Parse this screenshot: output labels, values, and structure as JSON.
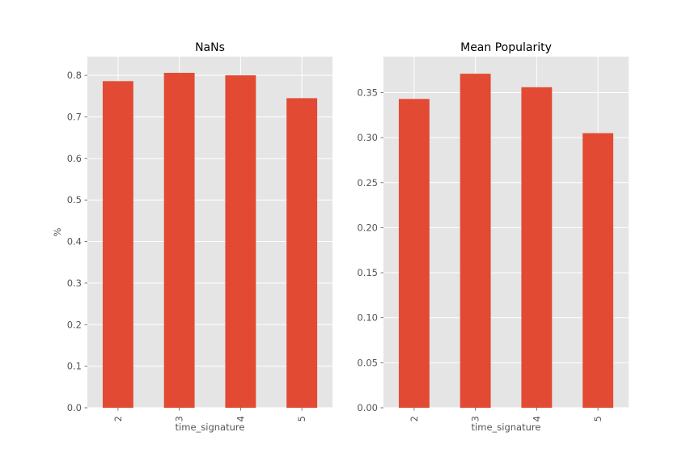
{
  "chart_data": [
    {
      "type": "bar",
      "title": "NaNs",
      "xlabel": "time_signature",
      "ylabel": "%",
      "categories": [
        "2",
        "3",
        "4",
        "5"
      ],
      "values": [
        0.786,
        0.806,
        0.8,
        0.745
      ],
      "ylim": [
        0,
        0.845
      ],
      "yticks": [
        "0.0",
        "0.1",
        "0.2",
        "0.3",
        "0.4",
        "0.5",
        "0.6",
        "0.7",
        "0.8"
      ],
      "grid": true,
      "bar_color": "#E24A33",
      "background": "#E5E5E5"
    },
    {
      "type": "bar",
      "title": "Mean Popularity",
      "xlabel": "time_signature",
      "ylabel": "",
      "categories": [
        "2",
        "3",
        "4",
        "5"
      ],
      "values": [
        0.343,
        0.371,
        0.356,
        0.305
      ],
      "ylim": [
        0,
        0.39
      ],
      "yticks": [
        "0.00",
        "0.05",
        "0.10",
        "0.15",
        "0.20",
        "0.25",
        "0.30",
        "0.35"
      ],
      "grid": true,
      "bar_color": "#E24A33",
      "background": "#E5E5E5"
    }
  ]
}
